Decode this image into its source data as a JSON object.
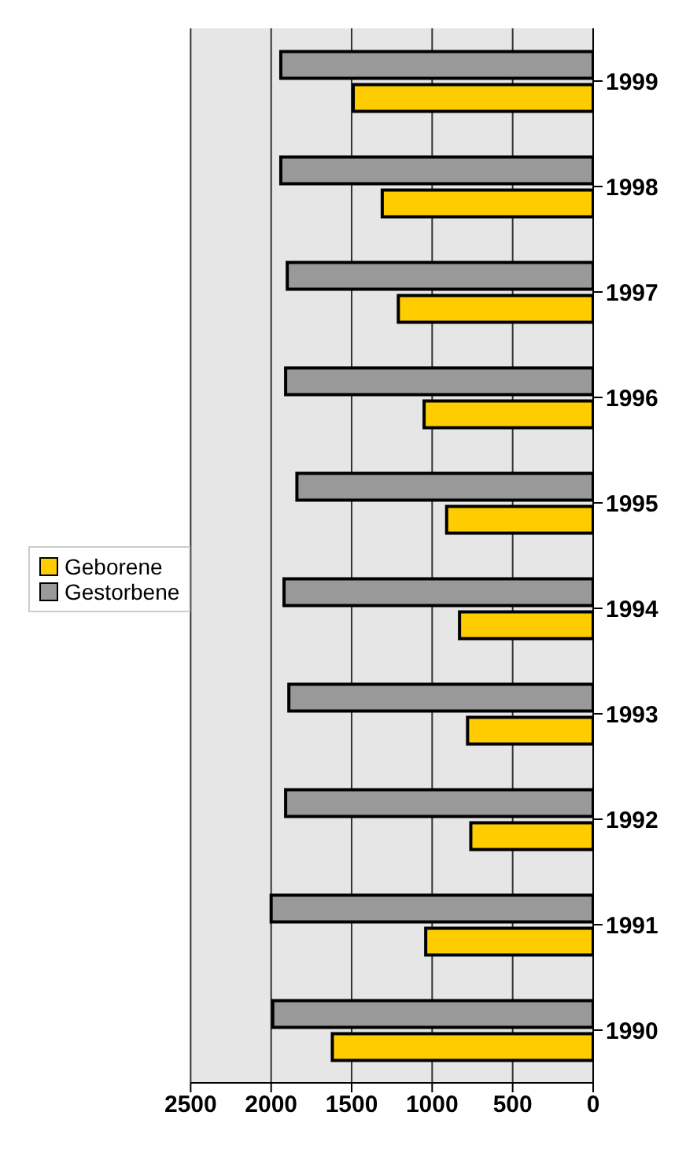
{
  "chart_data": {
    "type": "bar",
    "orientation": "horizontal",
    "categories": [
      "1999",
      "1998",
      "1997",
      "1996",
      "1995",
      "1994",
      "1993",
      "1992",
      "1991",
      "1990"
    ],
    "series": [
      {
        "name": "Geborene",
        "color": "#ffcc00",
        "values": [
          1490,
          1310,
          1210,
          1050,
          910,
          830,
          780,
          760,
          1040,
          1620
        ]
      },
      {
        "name": "Gestorbene",
        "color": "#999999",
        "values": [
          1940,
          1940,
          1900,
          1910,
          1840,
          1920,
          1890,
          1910,
          2000,
          1990
        ]
      }
    ],
    "xlim": [
      2500,
      0
    ],
    "xticks": [
      0,
      500,
      1000,
      1500,
      2000,
      2500
    ],
    "grid": "x",
    "legend": "left"
  }
}
